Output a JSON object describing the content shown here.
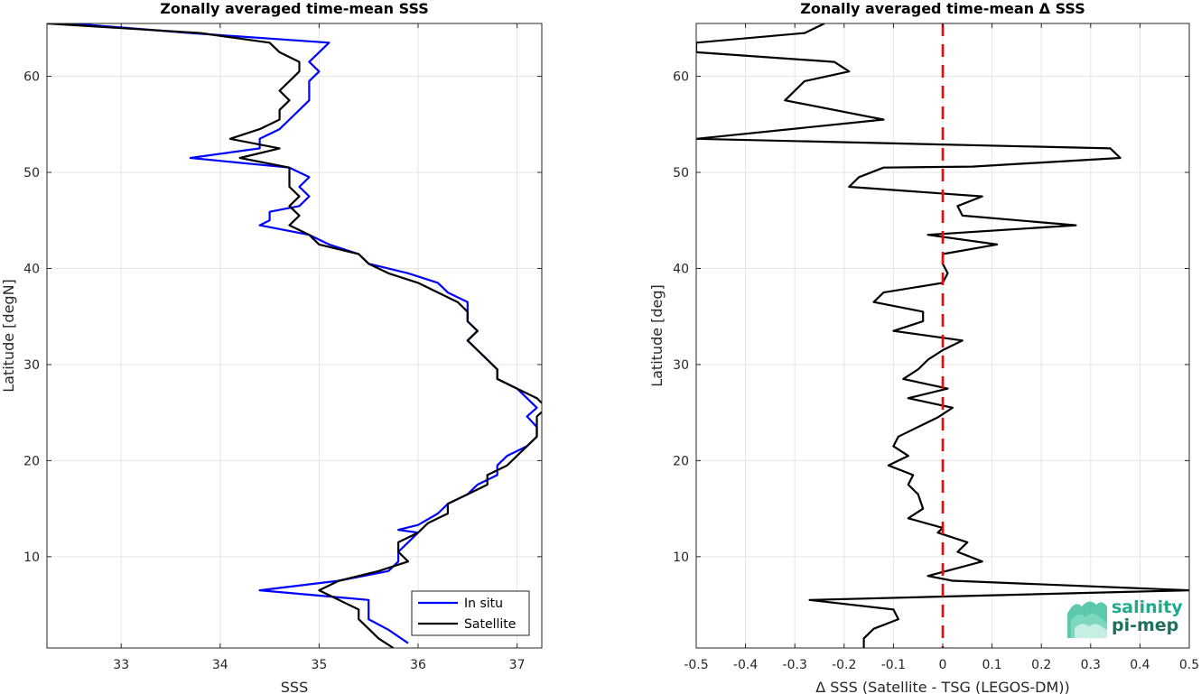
{
  "colors": {
    "in_situ": "#0000ff",
    "satellite": "#000000",
    "zero_line": "#ff0000",
    "grid": "#e5e5e5",
    "logo_accent": "#22a88a",
    "logo_dark": "#1e6f5f"
  },
  "logo": {
    "line1": "salinity",
    "line2": "pi-mep"
  },
  "chart_data": [
    {
      "type": "line",
      "title": "Zonally averaged time-mean SSS",
      "xlabel": "SSS",
      "ylabel": "Latitude [degN]",
      "xlim": [
        32.25,
        37.25
      ],
      "ylim": [
        0.5,
        65.5
      ],
      "xticks": [
        33,
        34,
        35,
        36,
        37
      ],
      "yticks": [
        10,
        20,
        30,
        40,
        50,
        60
      ],
      "grid": true,
      "legend_location": "bottom-right",
      "series": [
        {
          "name": "In situ",
          "color": "#0000ff",
          "points": [
            [
              35.9,
              1.0
            ],
            [
              35.7,
              2.4
            ],
            [
              35.5,
              3.5
            ],
            [
              35.5,
              4.6
            ],
            [
              35.5,
              5.2
            ],
            [
              35.5,
              5.5
            ],
            [
              34.4,
              6.5
            ],
            [
              35.2,
              7.5
            ],
            [
              35.7,
              8.5
            ],
            [
              35.8,
              9.5
            ],
            [
              35.8,
              10.5
            ],
            [
              35.9,
              11.5
            ],
            [
              36.0,
              12.5
            ],
            [
              35.8,
              12.8
            ],
            [
              36.0,
              13.3
            ],
            [
              36.2,
              14.5
            ],
            [
              36.3,
              15.5
            ],
            [
              36.5,
              16.5
            ],
            [
              36.6,
              17.5
            ],
            [
              36.8,
              18.5
            ],
            [
              36.8,
              19.5
            ],
            [
              36.9,
              20.5
            ],
            [
              37.1,
              21.5
            ],
            [
              37.2,
              22.5
            ],
            [
              37.2,
              23.5
            ],
            [
              37.1,
              24.6
            ],
            [
              37.2,
              25.5
            ],
            [
              37.1,
              26.5
            ],
            [
              37.0,
              27.5
            ],
            [
              36.8,
              28.5
            ],
            [
              36.8,
              29.5
            ],
            [
              36.7,
              30.5
            ],
            [
              36.6,
              31.5
            ],
            [
              36.5,
              32.5
            ],
            [
              36.6,
              33.5
            ],
            [
              36.5,
              34.5
            ],
            [
              36.5,
              35.5
            ],
            [
              36.5,
              36.5
            ],
            [
              36.3,
              37.5
            ],
            [
              36.2,
              38.5
            ],
            [
              35.9,
              39.5
            ],
            [
              35.5,
              40.5
            ],
            [
              35.4,
              41.5
            ],
            [
              35.1,
              42.5
            ],
            [
              34.9,
              43.5
            ],
            [
              34.4,
              44.5
            ],
            [
              34.5,
              45.0
            ],
            [
              34.5,
              45.9
            ],
            [
              34.8,
              46.5
            ],
            [
              34.9,
              47.5
            ],
            [
              34.8,
              48.5
            ],
            [
              34.9,
              49.5
            ],
            [
              34.7,
              50.5
            ],
            [
              33.7,
              51.5
            ],
            [
              34.4,
              52.5
            ],
            [
              34.4,
              53.5
            ],
            [
              34.6,
              54.5
            ],
            [
              34.7,
              55.5
            ],
            [
              34.8,
              56.5
            ],
            [
              34.9,
              57.5
            ],
            [
              34.9,
              58.5
            ],
            [
              34.9,
              59.5
            ],
            [
              35.0,
              60.5
            ],
            [
              34.9,
              61.5
            ],
            [
              35.0,
              62.5
            ],
            [
              35.1,
              63.5
            ],
            [
              33.7,
              64.5
            ],
            [
              32.5,
              65.5
            ]
          ]
        },
        {
          "name": "Satellite",
          "color": "#000000",
          "points": [
            [
              35.75,
              0.5
            ],
            [
              35.6,
              1.5
            ],
            [
              35.5,
              2.5
            ],
            [
              35.4,
              3.5
            ],
            [
              35.4,
              4.5
            ],
            [
              35.2,
              5.5
            ],
            [
              35.0,
              6.5
            ],
            [
              35.2,
              7.5
            ],
            [
              35.6,
              8.5
            ],
            [
              35.9,
              9.5
            ],
            [
              35.8,
              10.5
            ],
            [
              35.8,
              11.5
            ],
            [
              36.0,
              12.5
            ],
            [
              36.1,
              13.5
            ],
            [
              36.3,
              14.5
            ],
            [
              36.3,
              15.5
            ],
            [
              36.5,
              16.5
            ],
            [
              36.7,
              17.5
            ],
            [
              36.7,
              18.5
            ],
            [
              36.9,
              19.5
            ],
            [
              37.0,
              20.5
            ],
            [
              37.1,
              21.5
            ],
            [
              37.2,
              22.5
            ],
            [
              37.2,
              23.5
            ],
            [
              37.2,
              24.6
            ],
            [
              37.3,
              25.5
            ],
            [
              37.2,
              26.5
            ],
            [
              37.0,
              27.5
            ],
            [
              36.8,
              28.5
            ],
            [
              36.8,
              29.5
            ],
            [
              36.7,
              30.5
            ],
            [
              36.6,
              31.5
            ],
            [
              36.5,
              32.5
            ],
            [
              36.6,
              33.5
            ],
            [
              36.5,
              34.5
            ],
            [
              36.5,
              35.5
            ],
            [
              36.4,
              36.5
            ],
            [
              36.2,
              37.5
            ],
            [
              36.0,
              38.5
            ],
            [
              35.7,
              39.5
            ],
            [
              35.5,
              40.5
            ],
            [
              35.4,
              41.5
            ],
            [
              35.0,
              42.5
            ],
            [
              34.9,
              43.5
            ],
            [
              34.7,
              44.5
            ],
            [
              34.8,
              45.5
            ],
            [
              34.7,
              46.5
            ],
            [
              34.8,
              47.5
            ],
            [
              34.7,
              48.5
            ],
            [
              34.7,
              49.5
            ],
            [
              34.7,
              50.5
            ],
            [
              34.2,
              51.5
            ],
            [
              34.6,
              52.5
            ],
            [
              34.1,
              53.5
            ],
            [
              34.4,
              54.5
            ],
            [
              34.6,
              55.5
            ],
            [
              34.6,
              56.5
            ],
            [
              34.7,
              57.5
            ],
            [
              34.6,
              58.5
            ],
            [
              34.7,
              59.5
            ],
            [
              34.8,
              60.5
            ],
            [
              34.8,
              61.5
            ],
            [
              34.6,
              62.5
            ],
            [
              34.5,
              63.5
            ],
            [
              33.8,
              64.5
            ],
            [
              32.25,
              65.5
            ]
          ]
        }
      ]
    },
    {
      "type": "line",
      "title": "Zonally averaged time-mean Δ SSS",
      "xlabel": "Δ SSS (Satellite - TSG (LEGOS-DM))",
      "ylabel": "Latitude [deg]",
      "xlim": [
        -0.5,
        0.5
      ],
      "ylim": [
        0.5,
        65.5
      ],
      "xticks": [
        -0.5,
        -0.4,
        -0.3,
        -0.2,
        -0.1,
        0,
        0.1,
        0.2,
        0.3,
        0.4,
        0.5
      ],
      "yticks": [
        10,
        20,
        30,
        40,
        50,
        60
      ],
      "grid": true,
      "reference_line": {
        "x": 0,
        "color": "#ff0000",
        "style": "dashed"
      },
      "series": [
        {
          "color": "#000000",
          "points": [
            [
              -0.16,
              0.5
            ],
            [
              -0.16,
              1.5
            ],
            [
              -0.14,
              2.5
            ],
            [
              -0.09,
              3.5
            ],
            [
              -0.1,
              4.5
            ],
            [
              -0.27,
              5.5
            ],
            [
              0.5,
              6.5
            ],
            [
              0.02,
              7.5
            ],
            [
              -0.03,
              8.0
            ],
            [
              0.08,
              9.5
            ],
            [
              0.03,
              10.5
            ],
            [
              0.05,
              11.5
            ],
            [
              -0.01,
              12.5
            ],
            [
              0.0,
              13.0
            ],
            [
              -0.07,
              14.0
            ],
            [
              -0.04,
              15.0
            ],
            [
              -0.05,
              16.5
            ],
            [
              -0.07,
              17.5
            ],
            [
              -0.06,
              18.5
            ],
            [
              -0.11,
              19.5
            ],
            [
              -0.07,
              20.5
            ],
            [
              -0.1,
              21.5
            ],
            [
              -0.09,
              22.5
            ],
            [
              -0.05,
              23.5
            ],
            [
              -0.01,
              24.5
            ],
            [
              0.02,
              25.5
            ],
            [
              -0.07,
              26.5
            ],
            [
              0.01,
              27.5
            ],
            [
              -0.08,
              28.5
            ],
            [
              -0.05,
              29.5
            ],
            [
              -0.03,
              30.5
            ],
            [
              0.0,
              31.5
            ],
            [
              0.04,
              32.5
            ],
            [
              -0.1,
              33.5
            ],
            [
              -0.04,
              34.5
            ],
            [
              -0.04,
              35.5
            ],
            [
              -0.14,
              36.5
            ],
            [
              -0.12,
              37.5
            ],
            [
              0.0,
              38.5
            ],
            [
              0.01,
              39.5
            ],
            [
              0.0,
              40.5
            ],
            [
              0.0,
              41.5
            ],
            [
              0.11,
              42.5
            ],
            [
              -0.03,
              43.5
            ],
            [
              0.27,
              44.5
            ],
            [
              0.04,
              45.5
            ],
            [
              0.03,
              46.5
            ],
            [
              0.08,
              47.5
            ],
            [
              -0.19,
              48.5
            ],
            [
              -0.17,
              49.5
            ],
            [
              -0.12,
              50.5
            ],
            [
              0.06,
              50.6
            ],
            [
              0.36,
              51.5
            ],
            [
              0.34,
              52.5
            ],
            [
              -0.5,
              53.5
            ],
            [
              -0.12,
              55.5
            ],
            [
              -0.32,
              57.5
            ],
            [
              -0.28,
              59.5
            ],
            [
              -0.19,
              60.5
            ],
            [
              -0.22,
              61.5
            ],
            [
              -0.5,
              62.5
            ],
            [
              -0.5,
              63.5
            ],
            [
              -0.28,
              64.5
            ],
            [
              -0.24,
              65.5
            ]
          ]
        }
      ]
    }
  ]
}
